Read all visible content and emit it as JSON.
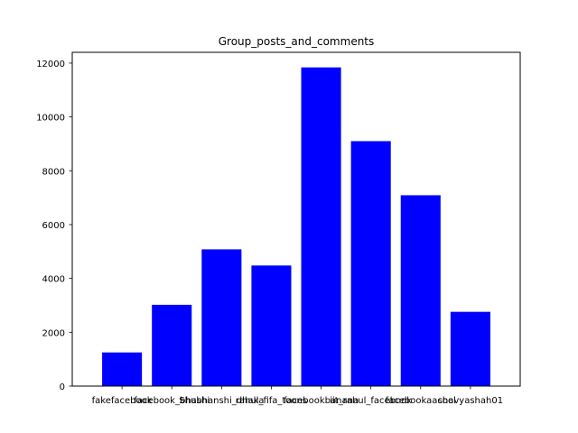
{
  "chart_data": {
    "type": "bar",
    "title": "Group_posts_and_comments",
    "xlabel": "",
    "ylabel": "",
    "categories": [
      "fakefacebook",
      "facebook_bhashi",
      "Shubhanshi_dhaka",
      "rahul_fifa_toons",
      "facebookbanana",
      "iit_rahul_facebook",
      "facebookaacool",
      "shavyashah01"
    ],
    "values": [
      1250,
      3020,
      5080,
      4480,
      11840,
      9100,
      7090,
      2760
    ],
    "ylim": [
      0,
      12400
    ],
    "yticks": [
      0,
      2000,
      4000,
      6000,
      8000,
      10000,
      12000
    ],
    "ytick_labels": [
      "0",
      "2000",
      "4000",
      "6000",
      "8000",
      "10000",
      "12000"
    ],
    "bar_color": "#0000ff",
    "grid": false
  }
}
